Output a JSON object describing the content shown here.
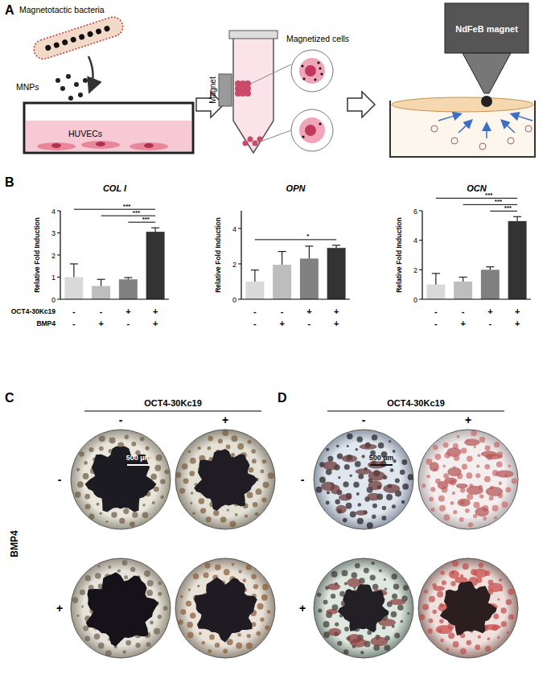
{
  "panel_labels": [
    "A",
    "B",
    "C",
    "D"
  ],
  "schematic": {
    "bacteria": "Magnetotactic bacteria",
    "particles": "MNPs",
    "cells": "HUVECs",
    "magnet_tube": "Magnet",
    "magnetized": "Magnetized cells",
    "magnet": "NdFeB magnet"
  },
  "conditions": [
    {
      "label": "OCT4-30Kc19",
      "marks": [
        "-",
        "-",
        "+",
        "+"
      ]
    },
    {
      "label": "BMP4",
      "marks": [
        "-",
        "+",
        "-",
        "+"
      ]
    }
  ],
  "chart_data": [
    {
      "type": "bar",
      "title": "COL I",
      "y_label": "Relative Fold Induction",
      "categories": [
        null,
        null,
        null,
        null
      ],
      "values": [
        1.0,
        0.6,
        0.9,
        3.05
      ],
      "errors": [
        0.6,
        0.3,
        0.08,
        0.18
      ],
      "colors": [
        "#d9d9d9",
        "#bdbdbd",
        "#808080",
        "#333333"
      ],
      "ylim": [
        0,
        4
      ],
      "yticks": [
        0,
        1,
        2,
        3,
        4
      ],
      "significance": [
        {
          "from": 2,
          "to": 3,
          "label": "***"
        },
        {
          "from": 1,
          "to": 3,
          "label": "***"
        },
        {
          "from": 0,
          "to": 3,
          "label": "***"
        }
      ]
    },
    {
      "type": "bar",
      "title": "OPN",
      "y_label": "Relative Fold Induction",
      "categories": [
        null,
        null,
        null,
        null
      ],
      "values": [
        1.0,
        1.95,
        2.3,
        2.9
      ],
      "errors": [
        0.65,
        0.75,
        0.7,
        0.15
      ],
      "colors": [
        "#d9d9d9",
        "#bdbdbd",
        "#808080",
        "#333333"
      ],
      "ylim": [
        0,
        5
      ],
      "yticks": [
        0,
        2,
        4
      ],
      "significance": [
        {
          "from": 0,
          "to": 3,
          "label": "*"
        }
      ]
    },
    {
      "type": "bar",
      "title": "OCN",
      "y_label": "Relative Fold Induction",
      "categories": [
        null,
        null,
        null,
        null
      ],
      "values": [
        1.0,
        1.2,
        2.0,
        5.3
      ],
      "errors": [
        0.75,
        0.3,
        0.2,
        0.3
      ],
      "colors": [
        "#d9d9d9",
        "#bdbdbd",
        "#808080",
        "#333333"
      ],
      "ylim": [
        0,
        6
      ],
      "yticks": [
        0,
        2,
        4,
        6
      ],
      "significance": [
        {
          "from": 2,
          "to": 3,
          "label": "***"
        },
        {
          "from": 1,
          "to": 3,
          "label": "***"
        },
        {
          "from": 0,
          "to": 3,
          "label": "***"
        }
      ]
    }
  ],
  "micrographs": [
    {
      "panel": "C",
      "column_header": "OCT4-30Kc19",
      "row_header": "BMP4",
      "columns": [
        "-",
        "+"
      ],
      "rows": [
        "-",
        "+"
      ],
      "scale_bar": "500 µm"
    },
    {
      "panel": "D",
      "column_header": "OCT4-30Kc19",
      "columns": [
        "-",
        "+"
      ],
      "rows": [
        "-",
        "+"
      ],
      "scale_bar": "500 µm"
    }
  ]
}
